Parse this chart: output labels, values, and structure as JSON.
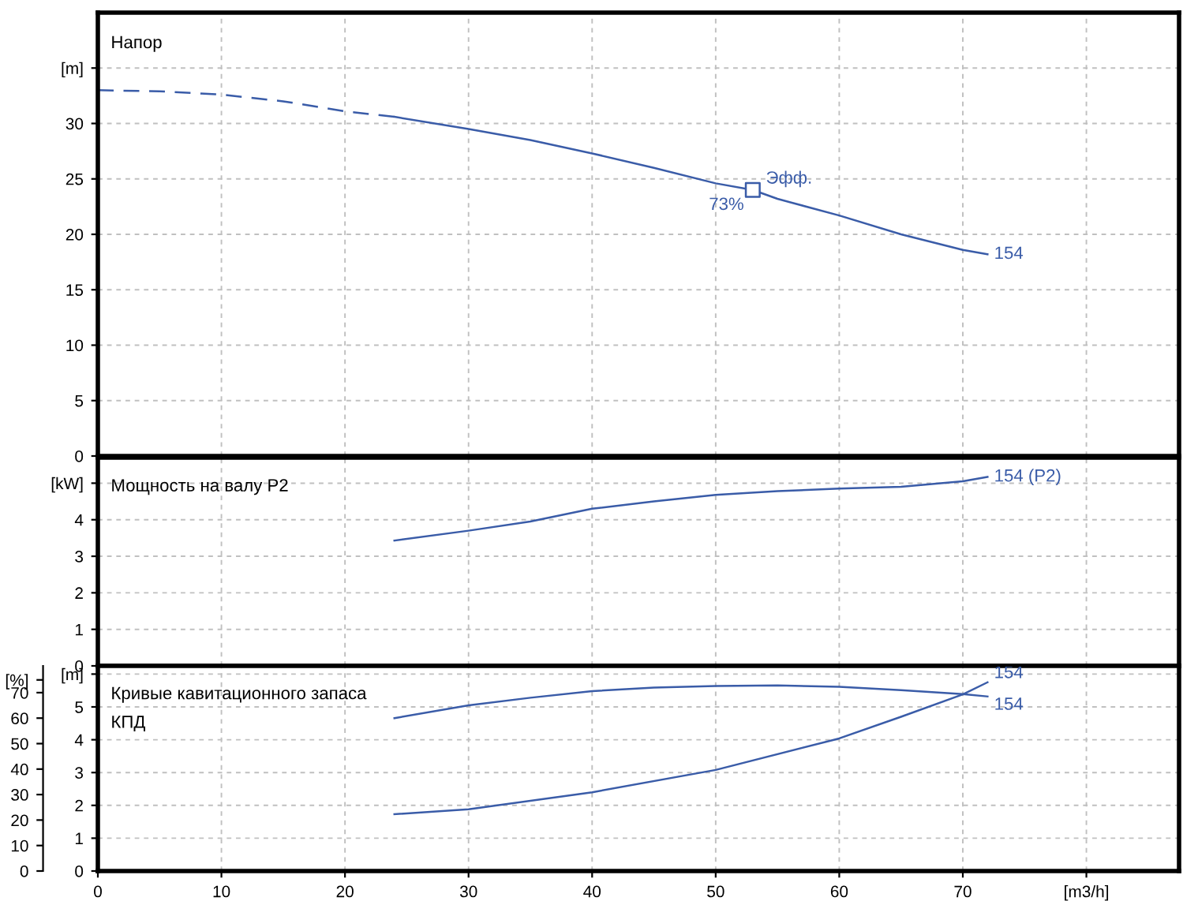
{
  "chart_data": [
    {
      "type": "line",
      "title": "Напор",
      "xlim": [
        0,
        87.5
      ],
      "xticks": [
        0,
        10,
        20,
        30,
        40,
        50,
        60,
        70,
        80
      ],
      "ylim": [
        0,
        40
      ],
      "yticks": [
        0,
        5,
        10,
        15,
        20,
        25,
        30,
        {
          "value": 35,
          "label": "[m]"
        }
      ],
      "grid": true,
      "legend": false,
      "tick_labels": "y",
      "series": [
        {
          "color": "#3a5ca8",
          "line_style": "dashed",
          "x": [
            0,
            5,
            10,
            15,
            20,
            24
          ],
          "values": [
            33,
            32.9,
            32.6,
            32,
            31.1,
            30.6
          ]
        },
        {
          "name": "154",
          "color": "#3a5ca8",
          "line_style": "solid",
          "x": [
            24,
            30,
            35,
            40,
            45,
            50,
            53,
            55,
            60,
            65,
            70,
            72
          ],
          "values": [
            30.6,
            29.5,
            28.5,
            27.3,
            26,
            24.6,
            24,
            23.2,
            21.7,
            20,
            18.6,
            18.2
          ]
        },
        {
          "type": "scatter",
          "marker": "square",
          "color": "#3a5ca8",
          "x": [
            53
          ],
          "values": [
            24
          ]
        }
      ],
      "annotations": [
        {
          "text": "Эфф.",
          "x": 53,
          "y": 24
        },
        {
          "text": "73%",
          "x": 53,
          "y": 24
        }
      ]
    },
    {
      "type": "line",
      "title": "Мощность на валу P2",
      "xlim": [
        0,
        87.5
      ],
      "xticks": [
        0,
        10,
        20,
        30,
        40,
        50,
        60,
        70,
        80
      ],
      "ylim": [
        0,
        5.7
      ],
      "yticks": [
        0,
        1,
        2,
        3,
        4,
        {
          "value": 5,
          "label": "[kW]"
        }
      ],
      "grid": true,
      "legend": false,
      "tick_labels": "y",
      "series": [
        {
          "name": "154 (P2)",
          "color": "#3a5ca8",
          "line_style": "solid",
          "x": [
            24,
            30,
            35,
            40,
            45,
            50,
            55,
            60,
            65,
            70,
            72
          ],
          "values": [
            3.43,
            3.7,
            3.95,
            4.3,
            4.5,
            4.68,
            4.78,
            4.85,
            4.9,
            5.05,
            5.17
          ]
        }
      ]
    },
    {
      "type": "line",
      "title": "Кривые кавитационного запаса",
      "subtitle": "КПД",
      "xlim": [
        0,
        87.5
      ],
      "xticks": [
        0,
        10,
        20,
        30,
        40,
        50,
        60,
        70,
        {
          "value": 80,
          "label": "[m3/h]"
        }
      ],
      "ylim": [
        0,
        6.25
      ],
      "yticks": [
        0,
        1,
        2,
        3,
        4,
        5,
        {
          "value": 6,
          "label": "[m]"
        }
      ],
      "y2lim": [
        0,
        80.5
      ],
      "y2ticks": [
        0,
        10,
        20,
        30,
        40,
        50,
        60,
        70,
        {
          "value": 75,
          "label": "[%]"
        }
      ],
      "grid": true,
      "legend": false,
      "series": [
        {
          "name": "154",
          "color": "#3a5ca8",
          "line_style": "solid",
          "x": [
            24,
            30,
            40,
            50,
            60,
            65,
            70,
            72
          ],
          "values": [
            1.73,
            1.88,
            2.4,
            3.08,
            4.04,
            4.7,
            5.38,
            5.75
          ]
        },
        {
          "name": "154",
          "color": "#3a5ca8",
          "line_style": "solid",
          "axis": "y2",
          "x": [
            24,
            30,
            35,
            40,
            45,
            50,
            55,
            60,
            65,
            70,
            72
          ],
          "values": [
            60,
            65,
            68,
            70.6,
            72,
            72.6,
            72.8,
            72.3,
            71,
            69.4,
            68.5
          ]
        }
      ]
    }
  ]
}
